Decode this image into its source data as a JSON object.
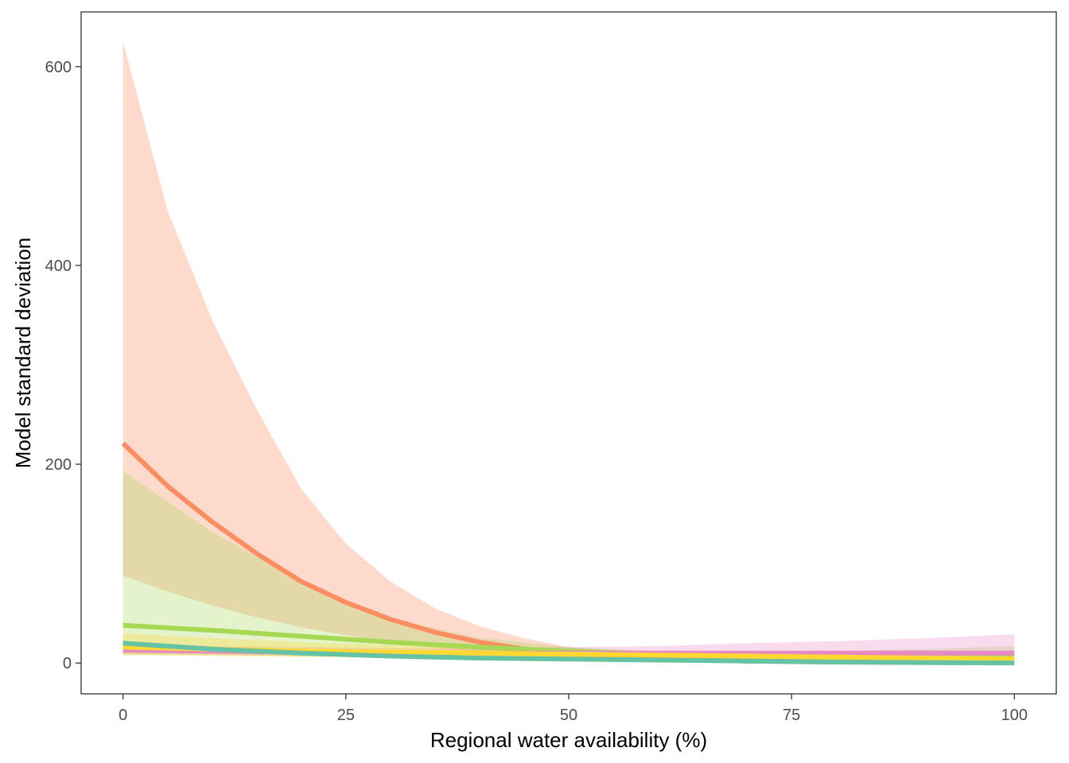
{
  "chart_data": {
    "type": "line",
    "title": "",
    "xlabel": "Regional water availability (%)",
    "ylabel": "Model standard deviation",
    "xlim": [
      -4.7,
      104.7
    ],
    "ylim": [
      -31,
      655
    ],
    "x_ticks": [
      0,
      25,
      50,
      75,
      100
    ],
    "y_ticks": [
      0,
      200,
      400,
      600
    ],
    "grid": false,
    "legend": "none",
    "series": [
      {
        "color": "#fc8d62",
        "ribbon_color": "#fc8d62",
        "ribbon_opacity": 0.32,
        "x": [
          0,
          5,
          10,
          15,
          20,
          25,
          30,
          35,
          40,
          45,
          50,
          55,
          60,
          65,
          70,
          75,
          80,
          85,
          90,
          95,
          100
        ],
        "y": [
          221,
          178,
          142,
          110,
          82,
          61,
          44,
          31,
          21,
          14,
          10,
          7,
          5,
          3,
          2,
          1.5,
          1,
          0.8,
          0.5,
          0.4,
          0.3
        ],
        "upper": [
          625,
          455,
          345,
          255,
          175,
          120,
          82,
          55,
          37,
          25,
          16,
          12,
          9,
          6,
          5,
          4,
          3,
          2.5,
          2,
          1.5,
          1
        ],
        "lower": [
          88,
          72,
          58,
          46,
          36,
          28,
          21,
          15,
          11,
          7,
          4,
          3,
          2,
          1.5,
          1,
          0.8,
          0.5,
          0.4,
          0.3,
          0.2,
          0.1
        ]
      },
      {
        "color": "#a6d854",
        "ribbon_color": "#a6d854",
        "ribbon_opacity": 0.3,
        "x": [
          0,
          10,
          20,
          30,
          40,
          50,
          60,
          70,
          80,
          90,
          100
        ],
        "y": [
          38,
          33,
          27,
          21,
          16,
          12,
          9,
          7,
          6,
          6,
          7
        ],
        "upper": [
          193,
          132,
          82,
          45,
          25,
          16,
          12,
          11,
          12,
          14,
          17
        ],
        "lower": [
          8,
          8,
          7,
          6,
          5,
          4,
          3,
          2,
          2,
          2,
          2
        ]
      },
      {
        "color": "#e78ac3",
        "ribbon_color": "#e78ac3",
        "ribbon_opacity": 0.3,
        "x": [
          0,
          10,
          20,
          30,
          40,
          50,
          60,
          70,
          80,
          90,
          100
        ],
        "y": [
          13,
          12,
          11,
          10,
          10,
          10,
          10,
          10,
          10,
          10,
          10
        ],
        "upper": [
          18,
          17,
          16,
          15,
          15,
          16,
          17,
          20,
          22,
          25,
          29
        ],
        "lower": [
          9,
          8,
          7,
          6,
          5,
          4,
          3,
          2,
          1.5,
          1,
          0.5
        ]
      },
      {
        "color": "#ffd92f",
        "ribbon_color": "#ffd92f",
        "ribbon_opacity": 0.3,
        "x": [
          0,
          10,
          20,
          30,
          40,
          50,
          60,
          70,
          80,
          90,
          100
        ],
        "y": [
          16,
          14,
          12,
          11,
          10,
          9,
          8,
          7,
          6,
          5,
          4
        ],
        "upper": [
          30,
          25,
          21,
          18,
          15,
          13,
          11,
          9,
          8,
          7,
          6
        ],
        "lower": [
          8,
          7,
          6,
          5,
          4,
          3.5,
          3,
          2.5,
          2,
          1.5,
          1
        ]
      },
      {
        "color": "#66c2a5",
        "ribbon_color": "#66c2a5",
        "ribbon_opacity": 0.3,
        "x": [
          0,
          10,
          20,
          30,
          40,
          50,
          60,
          70,
          80,
          90,
          100
        ],
        "y": [
          20,
          14,
          10,
          7,
          5,
          4,
          3,
          2,
          1,
          0.5,
          0
        ],
        "upper": [
          22,
          16,
          11,
          8,
          6,
          5,
          4,
          3,
          2,
          1.5,
          1
        ],
        "lower": [
          17,
          12,
          8,
          6,
          4,
          3,
          2,
          1,
          0,
          -0.5,
          -1
        ]
      }
    ]
  }
}
